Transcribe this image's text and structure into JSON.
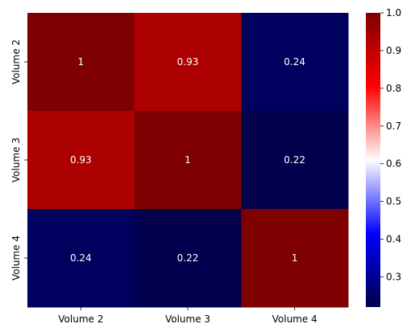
{
  "chart_data": {
    "type": "heatmap",
    "title": "",
    "xlabel": "",
    "ylabel": "",
    "x_categories": [
      "Volume 2",
      "Volume 3",
      "Volume 4"
    ],
    "y_categories": [
      "Volume 2",
      "Volume 3",
      "Volume 4"
    ],
    "values": [
      [
        1,
        0.93,
        0.24
      ],
      [
        0.93,
        1,
        0.22
      ],
      [
        0.24,
        0.22,
        1
      ]
    ],
    "cell_labels": [
      [
        "1",
        "0.93",
        "0.24"
      ],
      [
        "0.93",
        "1",
        "0.22"
      ],
      [
        "0.24",
        "0.22",
        "1"
      ]
    ],
    "colormap": "seismic",
    "colorbar": {
      "range": [
        0.22,
        1.0
      ],
      "ticks": [
        0.3,
        0.4,
        0.5,
        0.6,
        0.7,
        0.8,
        0.9,
        1.0
      ],
      "tick_labels": [
        "0.3",
        "0.4",
        "0.5",
        "0.6",
        "0.7",
        "0.8",
        "0.9",
        "1.0"
      ]
    },
    "colors": {
      "low": "#00004c",
      "mid_low": "#0000ff",
      "mid": "#ffffff",
      "mid_high": "#ff0000",
      "high": "#7f0000"
    }
  }
}
